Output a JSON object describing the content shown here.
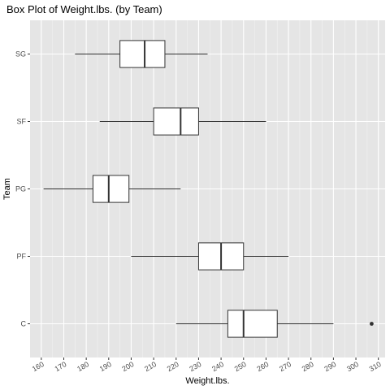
{
  "chart_data": {
    "type": "boxplot",
    "title": "Box Plot of Weight.lbs. (by Team)",
    "xlabel": "Weight.lbs.",
    "ylabel": "Team",
    "xlim": [
      155,
      313
    ],
    "x_ticks": [
      160,
      170,
      180,
      190,
      200,
      210,
      220,
      230,
      240,
      250,
      260,
      270,
      280,
      290,
      300,
      310
    ],
    "orientation": "horizontal",
    "grid": true,
    "panel_background": "#e5e5e5",
    "box_fill": "#ffffff",
    "categories": [
      "SG",
      "SF",
      "PG",
      "PF",
      "C"
    ],
    "boxes": [
      {
        "category": "SG",
        "whisker_low": 175,
        "q1": 195,
        "median": 206,
        "q3": 215,
        "whisker_high": 234,
        "outliers": []
      },
      {
        "category": "SF",
        "whisker_low": 186,
        "q1": 210,
        "median": 222,
        "q3": 230,
        "whisker_high": 260,
        "outliers": []
      },
      {
        "category": "PG",
        "whisker_low": 161,
        "q1": 183,
        "median": 190,
        "q3": 199,
        "whisker_high": 222,
        "outliers": []
      },
      {
        "category": "PF",
        "whisker_low": 200,
        "q1": 230,
        "median": 240,
        "q3": 250,
        "whisker_high": 270,
        "outliers": []
      },
      {
        "category": "C",
        "whisker_low": 220,
        "q1": 243,
        "median": 250,
        "q3": 265,
        "whisker_high": 290,
        "outliers": [
          307
        ]
      }
    ]
  }
}
